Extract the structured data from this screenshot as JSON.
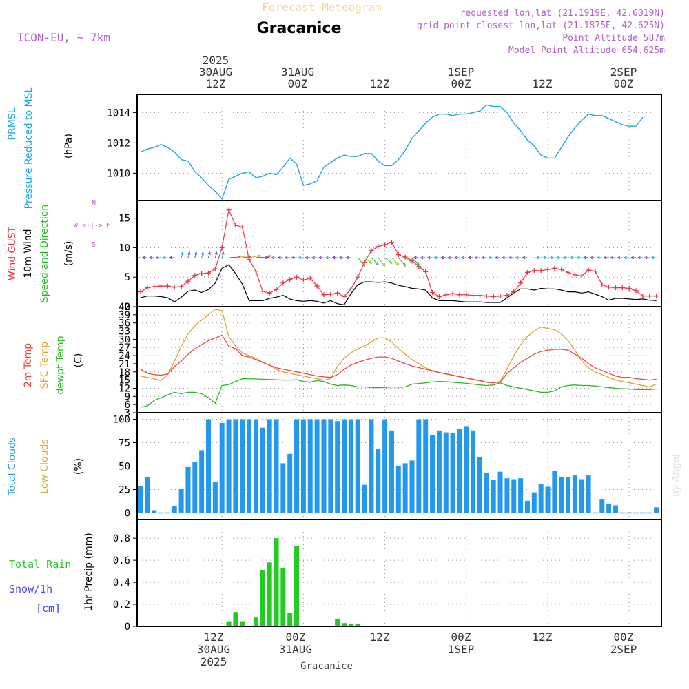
{
  "header": {
    "top_title": "Forecast Meteogram",
    "station": "Gracanice",
    "model": "ICON-EU, ~ 7km",
    "requested": "requested lon,lat (21.1919E, 42.6019N)",
    "grid_point": "grid point closest lon,lat (21.1875E, 42.625N)",
    "point_alt": "Point Altitude 587m",
    "model_alt": "Model Point Altitude 654.625m",
    "watermark": "by Angel",
    "bottom_name": "Gracanice"
  },
  "time_axis": {
    "top_labels": [
      {
        "l1": "2025",
        "l2": "30AUG",
        "l3": "12Z",
        "h": 12
      },
      {
        "l1": "",
        "l2": "31AUG",
        "l3": "00Z",
        "h": 24
      },
      {
        "l1": "",
        "l2": "",
        "l3": "12Z",
        "h": 36
      },
      {
        "l1": "",
        "l2": "1SEP",
        "l3": "00Z",
        "h": 48
      },
      {
        "l1": "",
        "l2": "",
        "l3": "12Z",
        "h": 60
      },
      {
        "l1": "",
        "l2": "2SEP",
        "l3": "00Z",
        "h": 72
      }
    ],
    "bottom_labels": [
      {
        "l1": "12Z",
        "l2": "30AUG",
        "l3": "2025",
        "h": 12
      },
      {
        "l1": "00Z",
        "l2": "31AUG",
        "l3": "",
        "h": 24
      },
      {
        "l1": "12Z",
        "l2": "",
        "l3": "",
        "h": 36
      },
      {
        "l1": "00Z",
        "l2": "1SEP",
        "l3": "",
        "h": 48
      },
      {
        "l1": "12Z",
        "l2": "",
        "l3": "",
        "h": 60
      },
      {
        "l1": "00Z",
        "l2": "2SEP",
        "l3": "",
        "h": 72
      }
    ]
  },
  "panel_labels": {
    "pres": {
      "name1": "PRMSL",
      "name2": "Pressure Reduced to MSL",
      "unit": "(hPa)"
    },
    "wind": {
      "gust": "Wind GUST",
      "wind10": "10m Wind",
      "dir": "Speed and Direction",
      "unit": "(m/s)",
      "compass_n": "N",
      "compass_s": "S",
      "compass_we": "W <-|-> E"
    },
    "temp": {
      "t2m": "2m Temp",
      "sfc": "SFC Temp",
      "dew": "dewpt Temp",
      "unit": "(C)"
    },
    "cloud": {
      "total": "Total Clouds",
      "low": "Low Clouds",
      "unit": "(%)"
    },
    "precip": {
      "rain": "Total  Rain",
      "snow": "Snow/1h",
      "cm": "[cm]",
      "unit": "1hr Precip (mm)"
    }
  },
  "colors": {
    "pressure": "#1aa7e6",
    "gust": "#ee3344",
    "wind": "#000000",
    "t2m": "#ee4444",
    "sfc": "#e0a030",
    "dew": "#22bb22",
    "total_cloud": "#2299ee",
    "low_cloud": "#d4aa44",
    "rain": "#22cc22",
    "snow": "#4444ff",
    "title_orange": "#f2d49a",
    "purple": "#a040c0"
  },
  "chart_data": [
    {
      "type": "line",
      "title": "PRMSL Pressure Reduced to MSL",
      "ylabel": "(hPa)",
      "ylim": [
        1008.2,
        1015.2
      ],
      "yticks": [
        1010,
        1012,
        1014
      ],
      "x_hours_start": 0,
      "x_step_hours": 1,
      "series": [
        {
          "name": "PRMSL",
          "values": [
            1011.4,
            1011.6,
            1011.7,
            1011.9,
            1011.7,
            1011.4,
            1010.9,
            1010.8,
            1010.1,
            1009.7,
            1009.2,
            1008.8,
            1008.3,
            1009.6,
            1009.8,
            1010.0,
            1010.1,
            1009.7,
            1009.8,
            1010.0,
            1009.9,
            1010.4,
            1011.0,
            1010.6,
            1009.2,
            1009.3,
            1009.5,
            1010.4,
            1010.7,
            1011.0,
            1011.2,
            1011.1,
            1011.1,
            1011.3,
            1011.3,
            1010.8,
            1010.5,
            1010.5,
            1010.9,
            1011.5,
            1012.3,
            1012.8,
            1013.3,
            1013.7,
            1013.9,
            1013.9,
            1013.8,
            1013.9,
            1013.9,
            1014.0,
            1014.1,
            1014.5,
            1014.4,
            1014.4,
            1014.0,
            1013.3,
            1012.8,
            1012.2,
            1011.8,
            1011.2,
            1011.0,
            1011.0,
            1011.7,
            1012.4,
            1013.0,
            1013.5,
            1013.9,
            1013.8,
            1013.8,
            1013.6,
            1013.4,
            1013.2,
            1013.1,
            1013.1,
            1013.7
          ]
        }
      ]
    },
    {
      "type": "line",
      "title": "Wind GUST / 10m Wind Speed and Direction",
      "ylabel": "(m/s)",
      "ylim": [
        0,
        18
      ],
      "yticks": [
        0,
        5,
        10,
        15
      ],
      "x_hours_start": 0,
      "x_step_hours": 1,
      "series": [
        {
          "name": "Wind GUST",
          "values": [
            2.5,
            3.2,
            3.4,
            3.5,
            3.5,
            3.3,
            3.4,
            4.3,
            5.3,
            5.6,
            5.7,
            6.4,
            10.0,
            16.4,
            13.8,
            13.5,
            8.0,
            6.0,
            2.6,
            2.3,
            2.9,
            4.0,
            4.6,
            5.0,
            4.5,
            4.8,
            3.5,
            2.0,
            2.1,
            2.3,
            1.7,
            3.0,
            5.0,
            7.5,
            9.5,
            10.2,
            10.5,
            10.9,
            8.8,
            8.4,
            7.8,
            6.8,
            5.9,
            2.4,
            1.7,
            2.0,
            2.2,
            2.0,
            2.0,
            1.9,
            1.9,
            1.8,
            1.7,
            1.8,
            1.9,
            2.5,
            4.0,
            5.8,
            6.1,
            6.1,
            6.3,
            6.5,
            6.3,
            5.8,
            5.4,
            5.2,
            6.2,
            6.0,
            3.7,
            3.3,
            3.2,
            3.2,
            3.1,
            2.7,
            1.8,
            1.8,
            1.8
          ]
        },
        {
          "name": "10m Wind",
          "values": [
            1.5,
            1.8,
            1.8,
            1.7,
            1.5,
            0.8,
            1.6,
            2.6,
            2.8,
            2.4,
            2.9,
            4.0,
            6.5,
            7.1,
            5.6,
            3.8,
            1.0,
            1.0,
            1.0,
            1.4,
            1.6,
            1.9,
            1.3,
            1.0,
            0.9,
            1.0,
            0.9,
            0.6,
            1.0,
            0.5,
            0.3,
            2.2,
            3.7,
            4.2,
            4.2,
            4.1,
            4.2,
            4.0,
            3.6,
            3.4,
            3.1,
            3.0,
            2.8,
            1.5,
            1.0,
            1.0,
            1.0,
            0.9,
            0.8,
            0.8,
            0.8,
            0.7,
            0.7,
            0.7,
            1.5,
            2.3,
            3.0,
            3.0,
            2.8,
            3.1,
            3.0,
            3.0,
            2.8,
            2.5,
            2.5,
            2.3,
            2.5,
            2.1,
            1.7,
            1.1,
            1.4,
            1.4,
            1.3,
            1.2,
            1.3,
            1.1,
            1.0
          ]
        }
      ]
    },
    {
      "type": "line",
      "title": "2m Temp / SFC Temp / dewpt Temp",
      "ylabel": "(C)",
      "ylim": [
        3,
        42
      ],
      "yticks": [
        3,
        6,
        9,
        12,
        15,
        18,
        21,
        24,
        27,
        30,
        33,
        36,
        39,
        42
      ],
      "x_hours_start": 0,
      "x_step_hours": 1,
      "series": [
        {
          "name": "2m Temp",
          "values": [
            19.0,
            17.5,
            17.0,
            16.8,
            17.2,
            20.0,
            22.0,
            24.5,
            26.5,
            28.0,
            29.5,
            30.5,
            31.5,
            27.5,
            26.5,
            24.0,
            23.5,
            22.5,
            21.5,
            20.5,
            19.5,
            19.0,
            18.5,
            18.0,
            17.5,
            17.0,
            16.5,
            16.2,
            16.0,
            17.0,
            19.0,
            20.5,
            21.5,
            22.3,
            23.0,
            23.5,
            23.5,
            23.0,
            22.0,
            21.0,
            20.2,
            19.6,
            19.0,
            18.3,
            17.8,
            17.3,
            16.8,
            16.3,
            15.8,
            15.3,
            14.8,
            14.2,
            14.0,
            14.3,
            17.5,
            19.5,
            21.5,
            23.0,
            24.5,
            25.5,
            26.0,
            26.3,
            26.3,
            26.0,
            24.5,
            23.0,
            21.0,
            19.5,
            18.5,
            17.5,
            16.5,
            16.0,
            16.0,
            15.5,
            15.3,
            15.0,
            15.3
          ]
        },
        {
          "name": "SFC Temp",
          "values": [
            16.5,
            16.0,
            15.5,
            14.8,
            17.0,
            22.0,
            27.5,
            32.0,
            35.0,
            37.0,
            39.0,
            41.0,
            40.5,
            31.0,
            27.5,
            25.0,
            24.0,
            23.0,
            21.5,
            20.5,
            19.0,
            18.0,
            17.5,
            17.0,
            16.5,
            16.0,
            15.5,
            15.0,
            15.5,
            20.0,
            23.0,
            25.0,
            26.5,
            27.5,
            29.0,
            30.5,
            30.5,
            29.0,
            26.5,
            24.5,
            22.5,
            21.0,
            19.5,
            18.5,
            17.8,
            17.2,
            16.7,
            16.2,
            15.7,
            15.2,
            14.7,
            14.2,
            14.0,
            14.5,
            19.0,
            24.0,
            28.0,
            31.0,
            33.0,
            34.5,
            34.0,
            33.5,
            32.0,
            29.5,
            26.0,
            22.0,
            19.5,
            18.0,
            17.0,
            16.0,
            15.0,
            14.5,
            14.0,
            13.5,
            13.0,
            12.5,
            13.5
          ]
        },
        {
          "name": "dewpt Temp",
          "values": [
            5.0,
            5.5,
            7.5,
            8.5,
            9.5,
            10.5,
            10.0,
            10.5,
            10.5,
            10.0,
            8.5,
            6.5,
            13.0,
            13.3,
            14.5,
            15.5,
            15.5,
            15.4,
            15.3,
            15.2,
            15.1,
            15.0,
            15.0,
            15.1,
            14.5,
            14.2,
            14.8,
            14.5,
            13.5,
            13.0,
            13.2,
            13.0,
            12.5,
            12.5,
            12.3,
            12.2,
            12.3,
            12.5,
            12.4,
            12.5,
            13.5,
            13.7,
            14.0,
            14.3,
            14.5,
            14.4,
            14.2,
            14.0,
            13.8,
            13.5,
            13.2,
            13.0,
            13.2,
            14.0,
            13.0,
            12.5,
            12.0,
            11.5,
            11.0,
            10.5,
            10.5,
            11.0,
            12.5,
            13.0,
            13.2,
            13.0,
            13.0,
            12.8,
            12.5,
            12.3,
            12.0,
            11.8,
            11.8,
            11.5,
            11.5,
            11.5,
            11.8
          ]
        }
      ]
    },
    {
      "type": "bar",
      "title": "Total Clouds / Low Clouds",
      "ylabel": "(%)",
      "ylim": [
        -7,
        107
      ],
      "yticks": [
        0,
        25,
        50,
        75,
        100
      ],
      "x_hours_start": 0,
      "x_step_hours": 1,
      "series": [
        {
          "name": "Total Clouds",
          "values": [
            29,
            38,
            3,
            0,
            0,
            7,
            26,
            49,
            54,
            67,
            100,
            33,
            96,
            100,
            100,
            100,
            100,
            100,
            91,
            100,
            100,
            53,
            63,
            100,
            100,
            100,
            100,
            100,
            100,
            98,
            100,
            100,
            100,
            30,
            100,
            68,
            100,
            88,
            50,
            53,
            56,
            100,
            100,
            83,
            88,
            86,
            85,
            90,
            92,
            88,
            60,
            43,
            35,
            44,
            37,
            36,
            37,
            13,
            22,
            31,
            28,
            45,
            38,
            38,
            40,
            36,
            40,
            0,
            15,
            10,
            8,
            0,
            0,
            0,
            0,
            0,
            6
          ]
        },
        {
          "name": "Low Clouds",
          "values": [
            0,
            0,
            0,
            0,
            0,
            0,
            0,
            0,
            0,
            0,
            0,
            0,
            0,
            0,
            0,
            0,
            0,
            0,
            0,
            0,
            0,
            0,
            0,
            0,
            0,
            0,
            0,
            0,
            0,
            0,
            0,
            0,
            0,
            0,
            0,
            0,
            0,
            0,
            0,
            0,
            0,
            0,
            0,
            0,
            0,
            0,
            0,
            0,
            0,
            0,
            0,
            0,
            0,
            0,
            0,
            0,
            0,
            0,
            0,
            0,
            0,
            0,
            0,
            0,
            0,
            0,
            0,
            0,
            0,
            0,
            0,
            0,
            0,
            0,
            0,
            0,
            0
          ]
        }
      ]
    },
    {
      "type": "bar",
      "title": "1hr Precip",
      "ylabel": "1hr Precip (mm)",
      "ylim": [
        0,
        0.97
      ],
      "yticks": [
        0,
        0.2,
        0.4,
        0.6,
        0.8
      ],
      "x_hours_start": 0,
      "x_step_hours": 1,
      "series": [
        {
          "name": "Total Rain",
          "values": [
            0,
            0,
            0,
            0,
            0,
            0,
            0,
            0,
            0,
            0,
            0,
            0,
            0,
            0.04,
            0.13,
            0.04,
            0,
            0.08,
            0.51,
            0.58,
            0.8,
            0.53,
            0.12,
            0.73,
            0,
            0,
            0,
            0,
            0,
            0.07,
            0.03,
            0.02,
            0.02,
            0,
            0,
            0,
            0,
            0,
            0,
            0,
            0,
            0,
            0,
            0,
            0,
            0,
            0,
            0,
            0,
            0,
            0,
            0,
            0,
            0,
            0,
            0,
            0,
            0,
            0,
            0,
            0,
            0,
            0,
            0,
            0,
            0,
            0,
            0,
            0,
            0,
            0,
            0,
            0,
            0,
            0,
            0,
            0
          ]
        }
      ]
    }
  ]
}
